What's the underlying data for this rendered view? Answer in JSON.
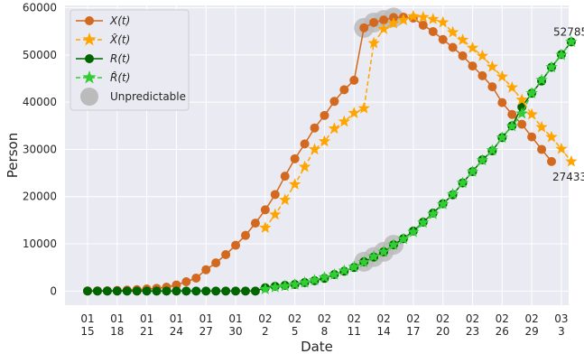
{
  "chart_data": {
    "type": "line",
    "xlabel": "Date",
    "ylabel": "Person",
    "ylim": [
      -3000,
      60500
    ],
    "grid": true,
    "legend_position": "top-left",
    "x_ticks": [
      "01\n15",
      "01\n18",
      "01\n21",
      "01\n24",
      "01\n27",
      "01\n30",
      "02\n2",
      "02\n5",
      "02\n8",
      "02\n11",
      "02\n14",
      "02\n17",
      "02\n20",
      "02\n23",
      "02\n26",
      "02\n29",
      "03\n3"
    ],
    "y_ticks": [
      0,
      10000,
      20000,
      30000,
      40000,
      50000,
      60000
    ],
    "x_start_label": "01-15",
    "x_end_label": "03-03",
    "series": [
      {
        "name": "X(t)",
        "style": "circle-line",
        "color": "#d2691e",
        "values": [
          41,
          45,
          62,
          121,
          198,
          291,
          440,
          571,
          830,
          1287,
          1975,
          2744,
          4515,
          5974,
          7711,
          9692,
          11791,
          14380,
          17205,
          20438,
          24324,
          28018,
          31161,
          34546,
          37198,
          40171,
          42638,
          44653,
          55748,
          56873,
          57416,
          57934,
          58016,
          57805,
          56303,
          54965,
          53284,
          51606,
          49824,
          47672,
          45604,
          43258,
          39919,
          37414,
          35329,
          32652,
          30004,
          27433
        ]
      },
      {
        "name": "X̂(t)",
        "style": "star-dashed",
        "color": "#ffa500",
        "start_index": 18,
        "values": [
          13400,
          16200,
          19300,
          22600,
          26300,
          30000,
          31700,
          34400,
          35900,
          37700,
          38700,
          52500,
          55500,
          56700,
          57400,
          58200,
          58000,
          57600,
          56900,
          54800,
          53200,
          51500,
          49800,
          47500,
          45400,
          43100,
          40500,
          37400,
          34700,
          32600,
          30100,
          27433
        ]
      },
      {
        "name": "R(t)",
        "style": "circle-line",
        "color": "#006400",
        "values": [
          0,
          0,
          0,
          0,
          0,
          0,
          0,
          0,
          0,
          0,
          0,
          0,
          0,
          0,
          0,
          0,
          0,
          0,
          0,
          0,
          0,
          0,
          0,
          0,
          0,
          0,
          0,
          0,
          0,
          0,
          0,
          0,
          0,
          0,
          0,
          0,
          0,
          0,
          0,
          0,
          0,
          0,
          39000,
          0,
          0,
          0,
          0,
          0
        ]
      },
      {
        "name": "R̂(t)",
        "style": "star-dashed",
        "color": "#32cd32",
        "start_index": 18,
        "values": [
          400,
          800,
          1050,
          1400,
          1800,
          2300,
          2900,
          3500,
          4300,
          5100,
          6100,
          7300,
          8300,
          9800,
          11000,
          12500,
          14500,
          16300,
          18400,
          20500,
          22900,
          25300,
          27700,
          29800,
          32500,
          34900,
          37600,
          41900,
          44700,
          47400,
          50000,
          52785
        ]
      }
    ],
    "r_observed": [
      0,
      0,
      0,
      0,
      0,
      0,
      0,
      0,
      0,
      0,
      0,
      0,
      0,
      0,
      0,
      0,
      0,
      0,
      700,
      1000,
      1200,
      1400,
      1800,
      2200,
      2700,
      3500,
      4200,
      5000,
      6200,
      7200,
      8300,
      9800,
      11100,
      12700,
      14600,
      16500,
      18500,
      20400,
      22900,
      25300,
      27800,
      29700,
      32500,
      35000,
      39000,
      41900,
      44500,
      47400,
      50100,
      52785
    ],
    "unpredictable": {
      "name": "Unpredictable",
      "color": "#bbbbbb",
      "x_points": [
        {
          "index": 28,
          "series": "X"
        },
        {
          "index": 29,
          "series": "X"
        },
        {
          "index": 30,
          "series": "X"
        },
        {
          "index": 31,
          "series": "X"
        },
        {
          "index": 28,
          "series": "R"
        },
        {
          "index": 29,
          "series": "R"
        },
        {
          "index": 30,
          "series": "R"
        },
        {
          "index": 31,
          "series": "R"
        }
      ]
    },
    "annotations": [
      {
        "text": "52785",
        "series": "R_hat",
        "anchor": "last"
      },
      {
        "text": "27433",
        "series": "X_hat",
        "anchor": "last"
      }
    ],
    "legend": [
      {
        "label": "X(t)",
        "italic": true,
        "hat": false,
        "marker": "circle",
        "color": "#d2691e",
        "dashed": false
      },
      {
        "label": "X(t)",
        "italic": true,
        "hat": true,
        "marker": "star",
        "color": "#ffa500",
        "dashed": true
      },
      {
        "label": "R(t)",
        "italic": true,
        "hat": false,
        "marker": "circle",
        "color": "#006400",
        "dashed": false
      },
      {
        "label": "R(t)",
        "italic": true,
        "hat": true,
        "marker": "star",
        "color": "#32cd32",
        "dashed": true
      },
      {
        "label": "Unpredictable",
        "italic": false,
        "hat": false,
        "marker": "bigcircle",
        "color": "#bbbbbb",
        "dashed": false
      }
    ]
  }
}
